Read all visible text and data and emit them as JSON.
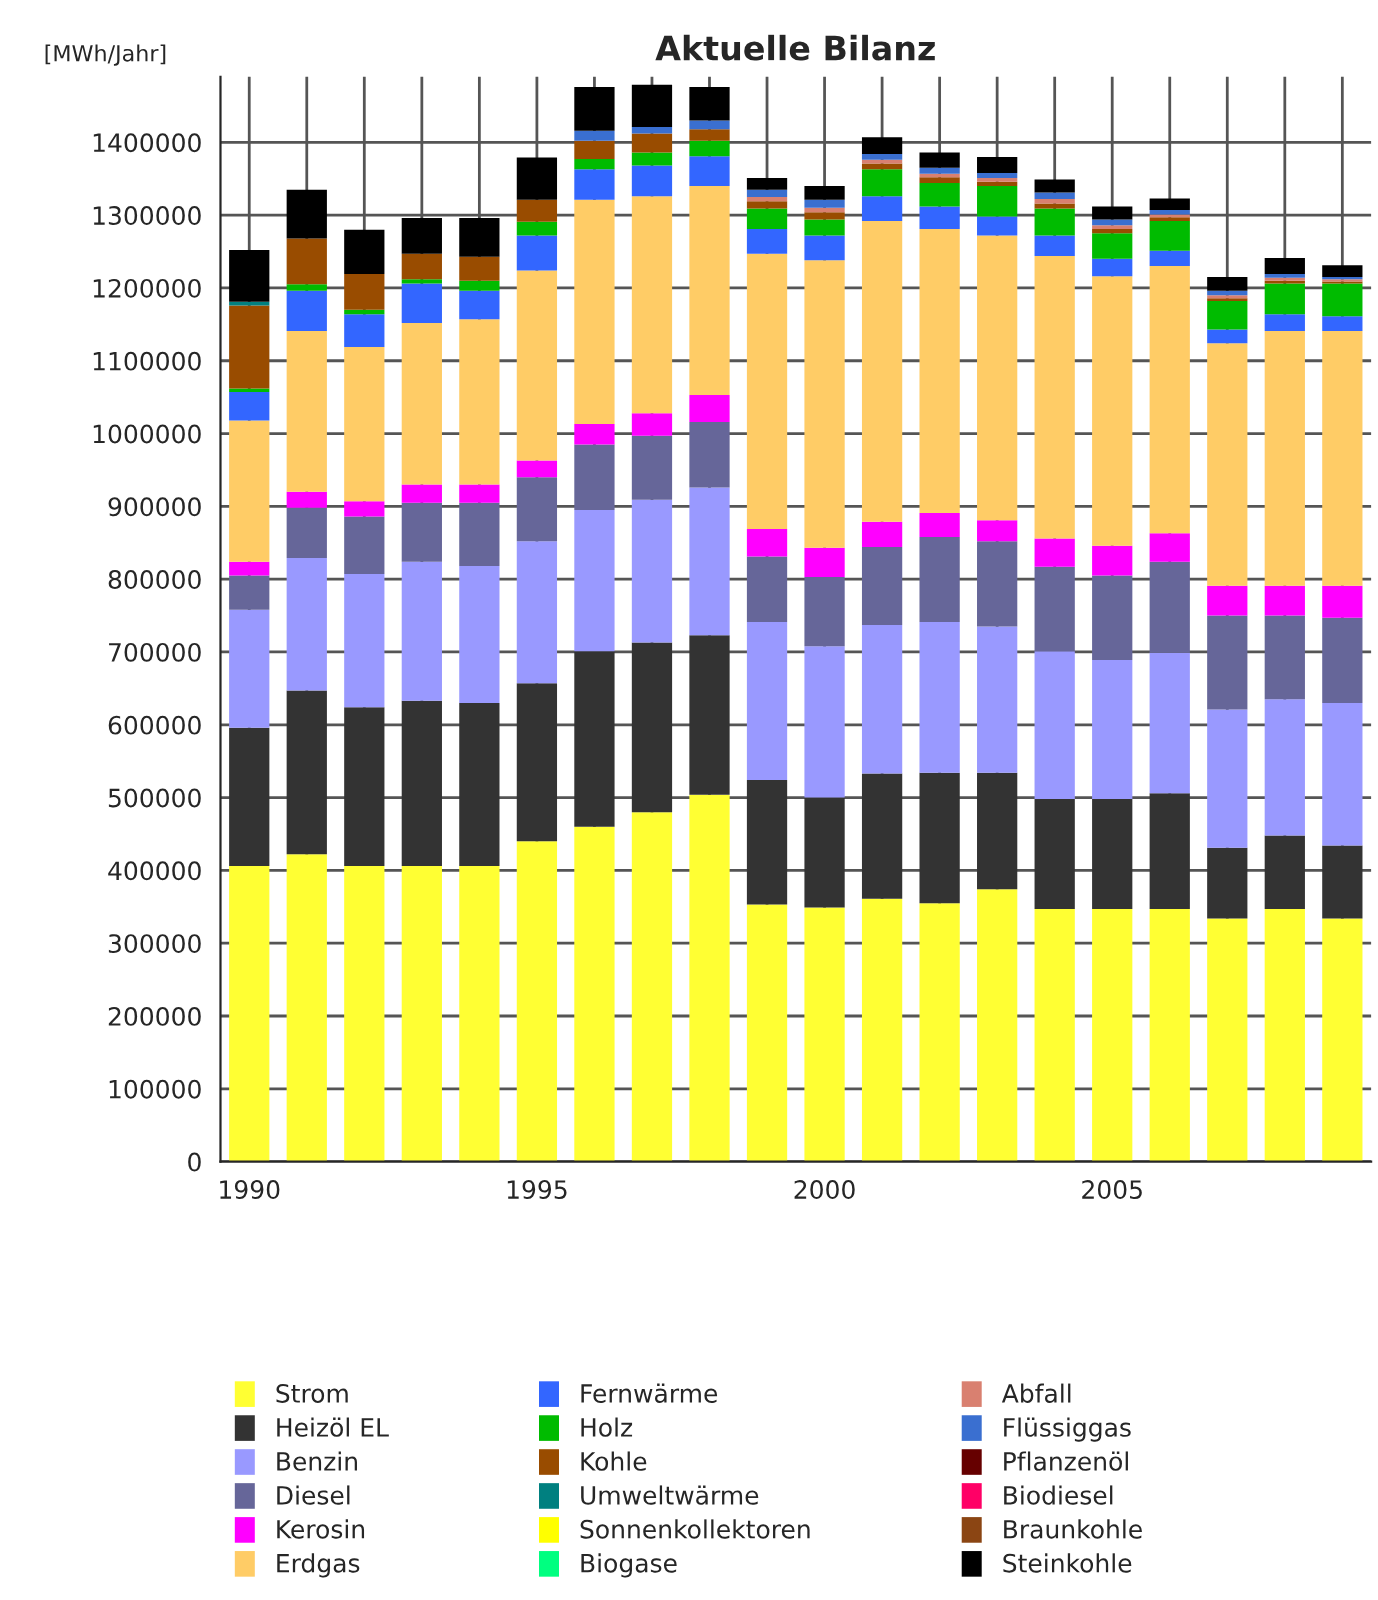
{
  "chart_data": {
    "type": "bar",
    "title": "Aktuelle Bilanz",
    "ylabel": "[MWh/Jahr]",
    "stacked": true,
    "grid": true,
    "legend": "bottom",
    "x": [
      1990,
      1991,
      1992,
      1993,
      1994,
      1995,
      1996,
      1997,
      1998,
      1999,
      2000,
      2001,
      2002,
      2003,
      2004,
      2005,
      2006,
      2007,
      2008,
      2009
    ],
    "xlim": [
      1989.5,
      2009.5
    ],
    "ylim": [
      0,
      1490000
    ],
    "xticks": [
      1990,
      {
        "value": 1991,
        "label": null
      },
      {
        "value": 1992,
        "label": null
      },
      {
        "value": 1993,
        "label": null
      },
      {
        "value": 1994,
        "label": null
      },
      1995,
      {
        "value": 1996,
        "label": null
      },
      {
        "value": 1997,
        "label": null
      },
      {
        "value": 1998,
        "label": null
      },
      {
        "value": 1999,
        "label": null
      },
      2000,
      {
        "value": 2001,
        "label": null
      },
      {
        "value": 2002,
        "label": null
      },
      {
        "value": 2003,
        "label": null
      },
      {
        "value": 2004,
        "label": null
      },
      2005,
      {
        "value": 2006,
        "label": null
      },
      {
        "value": 2007,
        "label": null
      },
      {
        "value": 2008,
        "label": null
      },
      {
        "value": 2009,
        "label": null
      }
    ],
    "yticks": [
      0,
      100000,
      200000,
      300000,
      400000,
      500000,
      600000,
      700000,
      800000,
      900000,
      1000000,
      1100000,
      1200000,
      1300000,
      1400000
    ],
    "series": [
      {
        "name": "Strom",
        "color": "#ffff33",
        "values": [
          406000,
          422000,
          406000,
          406000,
          406000,
          440000,
          460000,
          480000,
          504000,
          353000,
          349000,
          361000,
          355000,
          374000,
          347000,
          347000,
          347000,
          334000,
          347000,
          334000
        ]
      },
      {
        "name": "Heizöl EL",
        "color": "#333333",
        "values": [
          190000,
          225000,
          218000,
          227000,
          224000,
          217000,
          241000,
          233000,
          219000,
          171000,
          151000,
          172000,
          179000,
          160000,
          151000,
          151000,
          159000,
          97000,
          101000,
          100000
        ]
      },
      {
        "name": "Benzin",
        "color": "#9999ff",
        "values": [
          162000,
          182000,
          183000,
          191000,
          188000,
          195000,
          194000,
          196000,
          203000,
          217000,
          208000,
          204000,
          207000,
          201000,
          203000,
          191000,
          193000,
          190000,
          187000,
          196000
        ]
      },
      {
        "name": "Diesel",
        "color": "#666699",
        "values": [
          47000,
          69000,
          79000,
          81000,
          87000,
          88000,
          90000,
          88000,
          90000,
          90000,
          95000,
          107000,
          117000,
          117000,
          116000,
          116000,
          125000,
          129000,
          115000,
          117000
        ]
      },
      {
        "name": "Kerosin",
        "color": "#ff00ff",
        "values": [
          19000,
          22000,
          21000,
          25000,
          25000,
          23000,
          28000,
          31000,
          37000,
          38000,
          40000,
          35000,
          33000,
          29000,
          39000,
          41000,
          39000,
          41000,
          41000,
          44000
        ]
      },
      {
        "name": "Erdgas",
        "color": "#ffcc66",
        "values": [
          194000,
          221000,
          212000,
          222000,
          227000,
          261000,
          308000,
          298000,
          287000,
          378000,
          395000,
          413000,
          390000,
          391000,
          388000,
          370000,
          367000,
          333000,
          350000,
          350000
        ]
      },
      {
        "name": "Fernwärme",
        "color": "#3366ff",
        "values": [
          39000,
          55000,
          45000,
          54000,
          39000,
          48000,
          42000,
          42000,
          41000,
          34000,
          34000,
          34000,
          31000,
          26000,
          28000,
          24000,
          21000,
          19000,
          23000,
          20000
        ]
      },
      {
        "name": "Holz",
        "color": "#00bb00",
        "values": [
          5000,
          9000,
          6000,
          6000,
          14000,
          19000,
          14000,
          18000,
          21000,
          28000,
          22000,
          37000,
          32000,
          42000,
          37000,
          35000,
          41000,
          39000,
          42000,
          45000
        ]
      },
      {
        "name": "Kohle",
        "color": "#994c00",
        "values": [
          114000,
          63000,
          49000,
          35000,
          33000,
          30000,
          25000,
          26000,
          16000,
          10000,
          10000,
          8000,
          8000,
          6000,
          7000,
          6000,
          5000,
          4000,
          4000,
          3000
        ]
      },
      {
        "name": "Umweltwärme",
        "color": "#008080",
        "values": [
          5000,
          0,
          0,
          0,
          0,
          0,
          0,
          0,
          0,
          0,
          0,
          0,
          0,
          0,
          0,
          0,
          0,
          0,
          0,
          0
        ]
      },
      {
        "name": "Sonnenkollektoren",
        "color": "#ffff00",
        "values": [
          0,
          0,
          0,
          0,
          0,
          0,
          0,
          0,
          0,
          0,
          0,
          0,
          0,
          0,
          0,
          0,
          0,
          0,
          0,
          0
        ]
      },
      {
        "name": "Biogase",
        "color": "#00ff80",
        "values": [
          0,
          0,
          0,
          0,
          0,
          0,
          0,
          0,
          0,
          0,
          0,
          0,
          0,
          0,
          0,
          0,
          0,
          0,
          0,
          0
        ]
      },
      {
        "name": "Abfall",
        "color": "#d98070",
        "values": [
          0,
          0,
          0,
          0,
          0,
          0,
          0,
          0,
          0,
          6000,
          6000,
          5000,
          5000,
          5000,
          6000,
          5000,
          4000,
          4000,
          4000,
          3000
        ]
      },
      {
        "name": "Flüssiggas",
        "color": "#3a6fd0",
        "values": [
          0,
          0,
          0,
          0,
          0,
          0,
          14000,
          9000,
          12000,
          10000,
          11000,
          8000,
          8000,
          7000,
          9000,
          8000,
          6000,
          6000,
          5000,
          3000
        ]
      },
      {
        "name": "Pflanzenöl",
        "color": "#660000",
        "values": [
          0,
          0,
          0,
          0,
          0,
          0,
          0,
          0,
          0,
          0,
          0,
          0,
          0,
          0,
          0,
          0,
          0,
          0,
          0,
          0
        ]
      },
      {
        "name": "Biodiesel",
        "color": "#ff0066",
        "values": [
          0,
          0,
          0,
          0,
          0,
          0,
          0,
          0,
          0,
          0,
          0,
          0,
          0,
          0,
          0,
          0,
          0,
          0,
          0,
          0
        ]
      },
      {
        "name": "Braunkohle",
        "color": "#8b4513",
        "values": [
          0,
          0,
          0,
          0,
          0,
          0,
          0,
          0,
          0,
          0,
          0,
          0,
          0,
          0,
          0,
          0,
          0,
          0,
          0,
          0
        ]
      },
      {
        "name": "Steinkohle",
        "color": "#000000",
        "values": [
          71000,
          67000,
          61000,
          49000,
          53000,
          58000,
          60000,
          58000,
          46000,
          16000,
          19000,
          23000,
          21000,
          22000,
          18000,
          18000,
          16000,
          19000,
          22000,
          16000
        ]
      }
    ]
  }
}
